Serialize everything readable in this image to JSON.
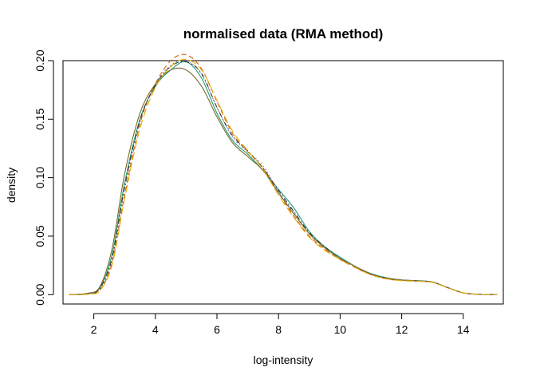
{
  "chart_data": {
    "type": "line",
    "title": "normalised data (RMA method)",
    "xlabel": "log-intensity",
    "ylabel": "density",
    "xlim": [
      1.0,
      15.3
    ],
    "ylim": [
      -0.008,
      0.2
    ],
    "xticks": [
      2,
      4,
      6,
      8,
      10,
      12,
      14
    ],
    "xtick_labels": [
      "2",
      "4",
      "6",
      "8",
      "10",
      "12",
      "14"
    ],
    "yticks": [
      0.0,
      0.05,
      0.1,
      0.15,
      0.2
    ],
    "ytick_labels": [
      "0.00",
      "0.05",
      "0.10",
      "0.15",
      "0.20"
    ],
    "grid": false,
    "legend": "none",
    "series": [
      {
        "color": "#1b9e77",
        "dash": "solid",
        "x": [
          1.2,
          1.8,
          2.2,
          2.6,
          3.0,
          3.5,
          4.0,
          4.5,
          5.0,
          5.5,
          6.0,
          6.5,
          7.0,
          7.5,
          8.0,
          8.5,
          9.0,
          9.5,
          10.0,
          10.5,
          11.0,
          11.5,
          12.0,
          12.5,
          13.0,
          13.5,
          14.0,
          14.5,
          15.1
        ],
        "y": [
          0.0,
          0.001,
          0.006,
          0.035,
          0.095,
          0.15,
          0.178,
          0.192,
          0.199,
          0.185,
          0.155,
          0.132,
          0.12,
          0.106,
          0.09,
          0.074,
          0.054,
          0.041,
          0.032,
          0.024,
          0.018,
          0.0145,
          0.0125,
          0.012,
          0.0108,
          0.006,
          0.0015,
          0.0003,
          0.0
        ]
      },
      {
        "color": "#d95f02",
        "dash": "dashed",
        "x": [
          1.2,
          1.8,
          2.2,
          2.6,
          3.0,
          3.5,
          4.0,
          4.5,
          5.0,
          5.5,
          6.0,
          6.5,
          7.0,
          7.5,
          8.0,
          8.5,
          9.0,
          9.5,
          10.0,
          10.5,
          11.0,
          11.5,
          12.0,
          12.5,
          13.0,
          13.5,
          14.0,
          14.5,
          15.1
        ],
        "y": [
          0.0,
          0.0005,
          0.004,
          0.028,
          0.085,
          0.146,
          0.18,
          0.2,
          0.205,
          0.193,
          0.165,
          0.138,
          0.122,
          0.108,
          0.087,
          0.067,
          0.05,
          0.039,
          0.03,
          0.023,
          0.017,
          0.0135,
          0.012,
          0.0115,
          0.0105,
          0.0058,
          0.0015,
          0.0003,
          0.0
        ]
      },
      {
        "color": "#7570b3",
        "dash": "dotted",
        "x": [
          1.2,
          1.8,
          2.2,
          2.6,
          3.0,
          3.5,
          4.0,
          4.5,
          5.0,
          5.5,
          6.0,
          6.5,
          7.0,
          7.5,
          8.0,
          8.5,
          9.0,
          9.5,
          10.0,
          10.5,
          11.0,
          11.5,
          12.0,
          12.5,
          13.0,
          13.5,
          14.0,
          14.5,
          15.1
        ],
        "y": [
          0.0,
          0.0008,
          0.005,
          0.03,
          0.09,
          0.148,
          0.18,
          0.196,
          0.2,
          0.188,
          0.16,
          0.135,
          0.122,
          0.11,
          0.088,
          0.07,
          0.052,
          0.04,
          0.031,
          0.024,
          0.0175,
          0.014,
          0.0125,
          0.012,
          0.0108,
          0.006,
          0.0015,
          0.0003,
          0.0
        ]
      },
      {
        "color": "#333333",
        "dash": "dashdot",
        "x": [
          1.2,
          1.8,
          2.2,
          2.6,
          3.0,
          3.5,
          4.0,
          4.5,
          5.0,
          5.5,
          6.0,
          6.5,
          7.0,
          7.5,
          8.0,
          8.5,
          9.0,
          9.5,
          10.0,
          10.5,
          11.0,
          11.5,
          12.0,
          12.5,
          13.0,
          13.5,
          14.0,
          14.5,
          15.1
        ],
        "y": [
          0.0,
          0.0009,
          0.0055,
          0.032,
          0.092,
          0.149,
          0.179,
          0.195,
          0.199,
          0.189,
          0.16,
          0.136,
          0.123,
          0.108,
          0.089,
          0.071,
          0.053,
          0.041,
          0.031,
          0.024,
          0.0178,
          0.0142,
          0.0125,
          0.0118,
          0.0107,
          0.006,
          0.0015,
          0.0003,
          0.0
        ]
      },
      {
        "color": "#7a6a2a",
        "dash": "solid",
        "x": [
          1.2,
          1.8,
          2.2,
          2.6,
          3.0,
          3.5,
          4.0,
          4.5,
          5.0,
          5.5,
          6.0,
          6.5,
          7.0,
          7.5,
          8.0,
          8.5,
          9.0,
          9.5,
          10.0,
          10.5,
          11.0,
          11.5,
          12.0,
          12.5,
          13.0,
          13.5,
          14.0,
          14.5,
          15.1
        ],
        "y": [
          0.0,
          0.0012,
          0.007,
          0.04,
          0.103,
          0.155,
          0.18,
          0.192,
          0.192,
          0.178,
          0.152,
          0.13,
          0.118,
          0.106,
          0.087,
          0.069,
          0.052,
          0.04,
          0.031,
          0.024,
          0.0175,
          0.014,
          0.0125,
          0.0118,
          0.0107,
          0.006,
          0.0015,
          0.0003,
          0.0
        ]
      },
      {
        "color": "#e6ab02",
        "dash": "longdash",
        "x": [
          1.2,
          1.8,
          2.2,
          2.6,
          3.0,
          3.5,
          4.0,
          4.5,
          5.0,
          5.5,
          6.0,
          6.5,
          7.0,
          7.5,
          8.0,
          8.5,
          9.0,
          9.5,
          10.0,
          10.5,
          11.0,
          11.5,
          12.0,
          12.5,
          13.0,
          13.5,
          14.0,
          14.5,
          15.1
        ],
        "y": [
          0.0,
          0.0004,
          0.0035,
          0.026,
          0.082,
          0.142,
          0.177,
          0.195,
          0.201,
          0.192,
          0.166,
          0.14,
          0.123,
          0.107,
          0.085,
          0.066,
          0.049,
          0.038,
          0.03,
          0.023,
          0.017,
          0.0135,
          0.012,
          0.0115,
          0.0105,
          0.0058,
          0.0015,
          0.0003,
          0.0
        ]
      }
    ]
  }
}
